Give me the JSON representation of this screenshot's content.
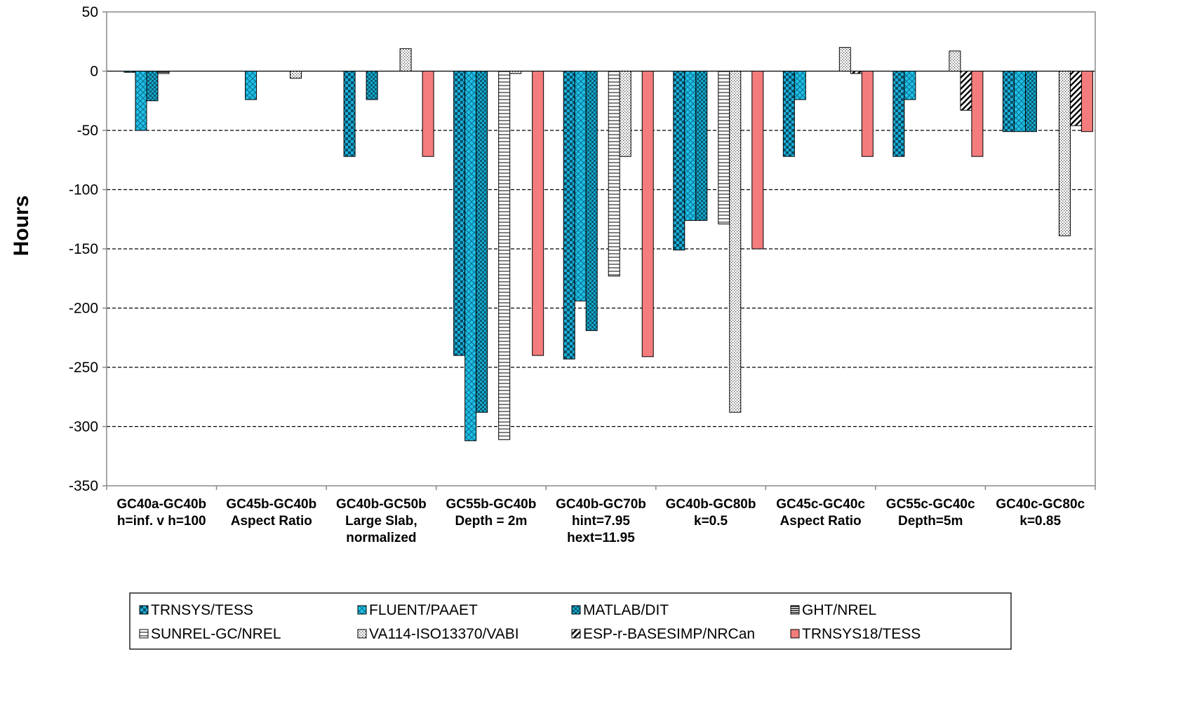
{
  "chart_data": {
    "type": "bar",
    "title": "",
    "xlabel": "",
    "ylabel": "Hours",
    "ylim": [
      -350,
      50
    ],
    "yticks": [
      50,
      0,
      -50,
      -100,
      -150,
      -200,
      -250,
      -300,
      -350
    ],
    "grid": "horizontal dashed",
    "legend_position": "bottom",
    "categories": [
      [
        "GC40a-GC40b",
        "h=inf. v h=100"
      ],
      [
        "GC45b-GC40b",
        "Aspect Ratio"
      ],
      [
        "GC40b-GC50b",
        "Large Slab,",
        "normalized"
      ],
      [
        "GC55b-GC40b",
        "Depth = 2m"
      ],
      [
        "GC40b-GC70b",
        "hint=7.95",
        "hext=11.95"
      ],
      [
        "GC40b-GC80b",
        "k=0.5"
      ],
      [
        "GC45c-GC40c",
        "Aspect Ratio"
      ],
      [
        "GC55c-GC40c",
        "Depth=5m"
      ],
      [
        "GC40c-GC80c",
        "k=0.85"
      ]
    ],
    "series": [
      {
        "name": "TRNSYS/TESS",
        "color": "#1aaed8",
        "pattern": "checker-large",
        "values": [
          -1,
          0,
          -72,
          -240,
          -243,
          -151,
          -72,
          -72,
          -51
        ]
      },
      {
        "name": "FLUENT/PAAET",
        "color": "#1fc0e8",
        "pattern": "crosshatch",
        "values": [
          -50,
          -24,
          0,
          -312,
          -194,
          -126,
          -24,
          -24,
          -51
        ]
      },
      {
        "name": "MATLAB/DIT",
        "color": "#14a8cc",
        "pattern": "checker-small",
        "values": [
          -25,
          null,
          -24,
          -288,
          -219,
          -126,
          null,
          null,
          -51
        ]
      },
      {
        "name": "GHT/NREL",
        "color": "#ffffff",
        "pattern": "h-lines-dense",
        "values": [
          -2,
          null,
          null,
          null,
          null,
          null,
          null,
          null,
          null
        ]
      },
      {
        "name": "SUNREL-GC/NREL",
        "color": "#ffffff",
        "pattern": "h-lines",
        "values": [
          null,
          null,
          null,
          -311,
          -173,
          -129,
          null,
          null,
          null
        ]
      },
      {
        "name": "VA114-ISO13370/VABI",
        "color": "#ffffff",
        "pattern": "dots",
        "values": [
          null,
          -6,
          19,
          -2,
          -72,
          -288,
          20,
          17,
          -139
        ]
      },
      {
        "name": "ESP-r-BASESIMP/NRCan",
        "color": "#ffffff",
        "pattern": "diagonal",
        "values": [
          null,
          null,
          null,
          null,
          null,
          null,
          -2,
          -33,
          -46
        ]
      },
      {
        "name": "TRNSYS18/TESS",
        "color": "#f47c7c",
        "pattern": "solid",
        "values": [
          null,
          null,
          -72,
          -240,
          -241,
          -150,
          -72,
          -72,
          -51
        ]
      }
    ]
  }
}
